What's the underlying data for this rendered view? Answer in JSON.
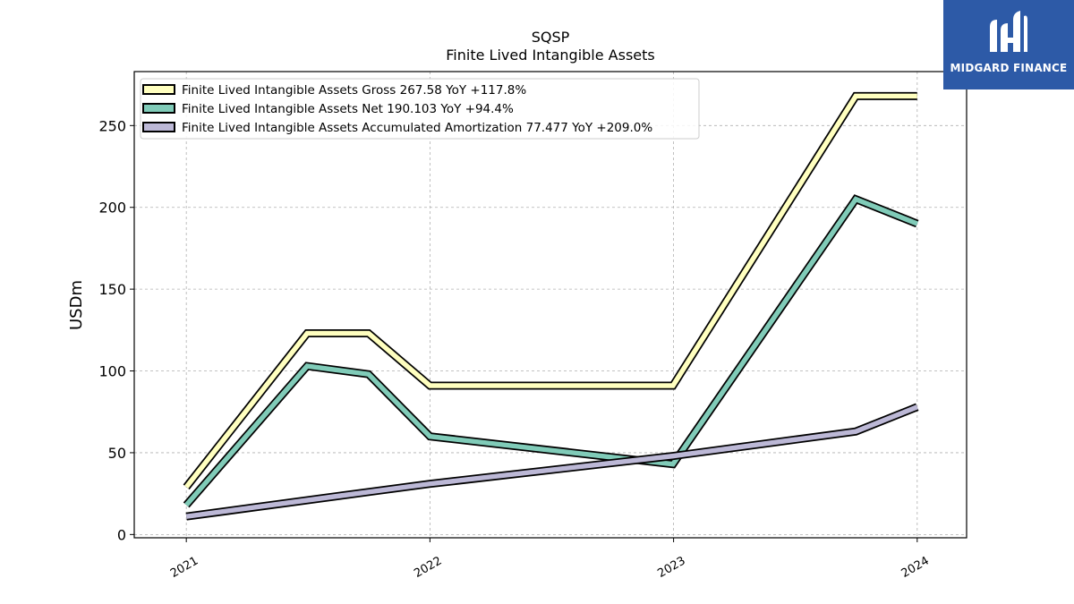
{
  "header": {
    "title_line1": "SQSP",
    "title_line2": "Finite Lived Intangible Assets"
  },
  "logo": {
    "text": "MIDGARD FINANCE",
    "background": "#2d5aa7"
  },
  "chart_data": {
    "type": "line",
    "title": "SQSP",
    "subtitle": "Finite Lived Intangible Assets",
    "ylabel": "USDm",
    "xlabel": "",
    "ylim": [
      -2,
      283
    ],
    "xlim": [
      "2020-10-15",
      "2024-03-15"
    ],
    "yticks": [
      0,
      50,
      100,
      150,
      200,
      250
    ],
    "ytick_labels": [
      "0",
      "50",
      "100",
      "150",
      "200",
      "250"
    ],
    "xticks": [
      "2021-01-01",
      "2022-01-01",
      "2023-01-01",
      "2024-01-01"
    ],
    "xtick_labels": [
      "2021",
      "2022",
      "2023",
      "2024"
    ],
    "grid": true,
    "legend_position": "top-left",
    "series": [
      {
        "name": "Finite Lived Intangible Assets Gross",
        "legend_label": "Finite Lived Intangible Assets Gross  267.58 YoY +117.8%",
        "color": "#ffffbf",
        "x": [
          "2021-01-01",
          "2021-07-01",
          "2021-10-01",
          "2022-01-01",
          "2022-12-31",
          "2023-10-01",
          "2024-01-01"
        ],
        "values": [
          29,
          123,
          123,
          91,
          91,
          268,
          268
        ]
      },
      {
        "name": "Finite Lived Intangible Assets Net",
        "legend_label": "Finite Lived Intangible Assets Net  190.103 YoY +94.4%",
        "color": "#80cbb8",
        "x": [
          "2021-01-01",
          "2021-07-01",
          "2021-10-01",
          "2022-01-01",
          "2022-12-31",
          "2023-10-01",
          "2024-01-01"
        ],
        "values": [
          18,
          103,
          98,
          60,
          43,
          205,
          190
        ]
      },
      {
        "name": "Finite Lived Intangible Assets Accumulated Amortization",
        "legend_label": "Finite Lived Intangible Assets Accumulated Amortization  77.477 YoY +209.0%",
        "color": "#bcb8d6",
        "x": [
          "2021-01-01",
          "2021-10-01",
          "2022-01-01",
          "2022-12-31",
          "2023-10-01",
          "2024-01-01"
        ],
        "values": [
          11,
          26,
          31,
          48,
          63,
          78
        ]
      }
    ]
  }
}
